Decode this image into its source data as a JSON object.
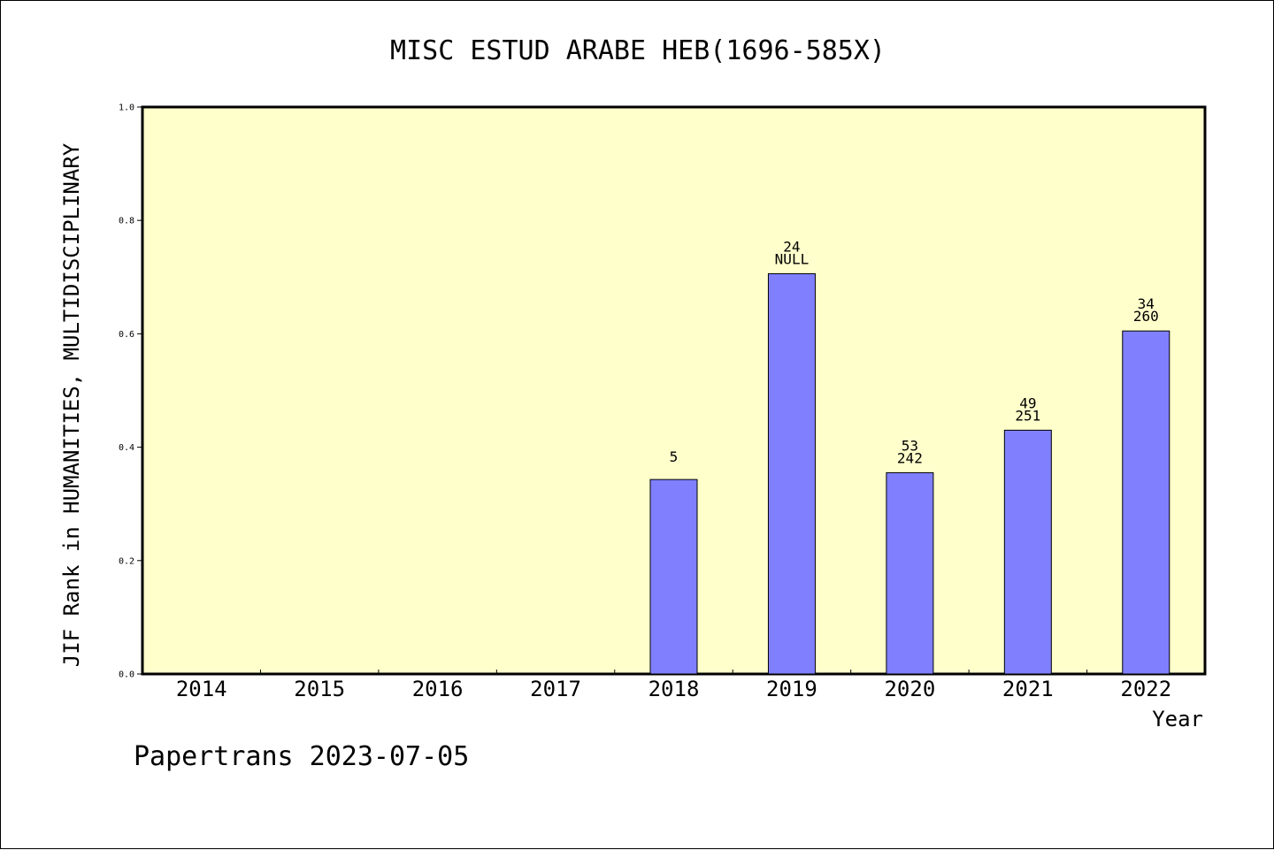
{
  "colors": {
    "plot_background": "#ffffcc",
    "bar_fill": "#8080ff",
    "bar_stroke": "#000000",
    "axis": "#000000"
  },
  "chart_data": {
    "type": "bar",
    "title": "MISC ESTUD ARABE HEB(1696-585X)",
    "xlabel": "Year",
    "ylabel": "JIF Rank in HUMANITIES, MULTIDISCIPLINARY",
    "ylim": [
      0.0,
      1.0
    ],
    "yticks": [
      "0.0",
      "0.2",
      "0.4",
      "0.6",
      "0.8",
      "1.0"
    ],
    "categories": [
      "2014",
      "2015",
      "2016",
      "2017",
      "2018",
      "2019",
      "2020",
      "2021",
      "2022"
    ],
    "values": [
      null,
      null,
      null,
      null,
      0.343,
      0.706,
      0.355,
      0.43,
      0.605
    ],
    "label_top": [
      "",
      "",
      "",
      "",
      "5",
      "24",
      "53",
      "49",
      "34"
    ],
    "label_bottom": [
      "",
      "",
      "",
      "",
      "",
      "NULL",
      "242",
      "251",
      "260"
    ],
    "grid": false,
    "legend": "none"
  },
  "footer": {
    "credit": "Papertrans 2023-07-05"
  }
}
